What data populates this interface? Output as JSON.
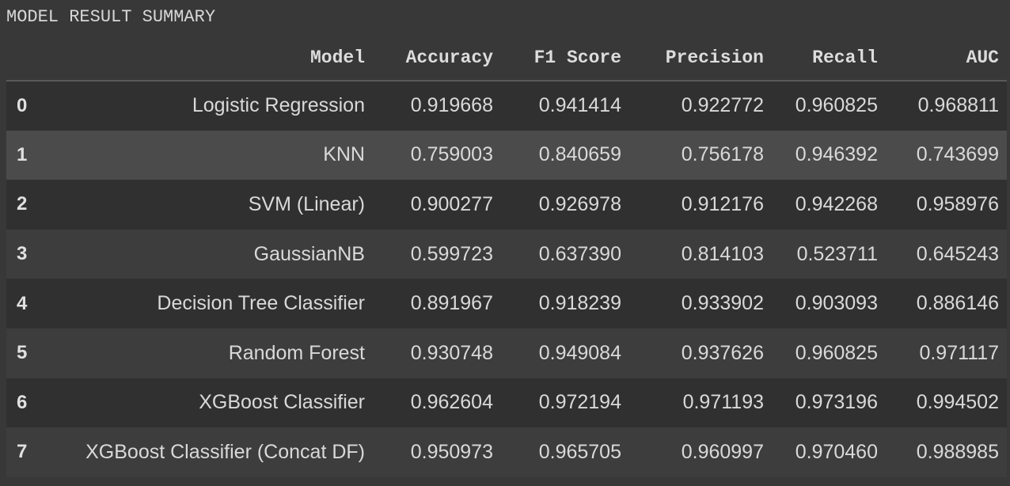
{
  "output": {
    "title": "MODEL RESULT SUMMARY"
  },
  "table": {
    "index_header": "",
    "columns": [
      "Model",
      "Accuracy",
      "F1 Score",
      "Precision",
      "Recall",
      "AUC"
    ],
    "rows": [
      {
        "index": "0",
        "cells": [
          "Logistic Regression",
          "0.919668",
          "0.941414",
          "0.922772",
          "0.960825",
          "0.968811"
        ]
      },
      {
        "index": "1",
        "cells": [
          "KNN",
          "0.759003",
          "0.840659",
          "0.756178",
          "0.946392",
          "0.743699"
        ]
      },
      {
        "index": "2",
        "cells": [
          "SVM (Linear)",
          "0.900277",
          "0.926978",
          "0.912176",
          "0.942268",
          "0.958976"
        ]
      },
      {
        "index": "3",
        "cells": [
          "GaussianNB",
          "0.599723",
          "0.637390",
          "0.814103",
          "0.523711",
          "0.645243"
        ]
      },
      {
        "index": "4",
        "cells": [
          "Decision Tree Classifier",
          "0.891967",
          "0.918239",
          "0.933902",
          "0.903093",
          "0.886146"
        ]
      },
      {
        "index": "5",
        "cells": [
          "Random Forest",
          "0.930748",
          "0.949084",
          "0.937626",
          "0.960825",
          "0.971117"
        ]
      },
      {
        "index": "6",
        "cells": [
          "XGBoost Classifier",
          "0.962604",
          "0.972194",
          "0.971193",
          "0.973196",
          "0.994502"
        ]
      },
      {
        "index": "7",
        "cells": [
          "XGBoost Classifier (Concat DF)",
          "0.950973",
          "0.965705",
          "0.960997",
          "0.970460",
          "0.988985"
        ]
      }
    ],
    "hovered_row_index": 1
  }
}
